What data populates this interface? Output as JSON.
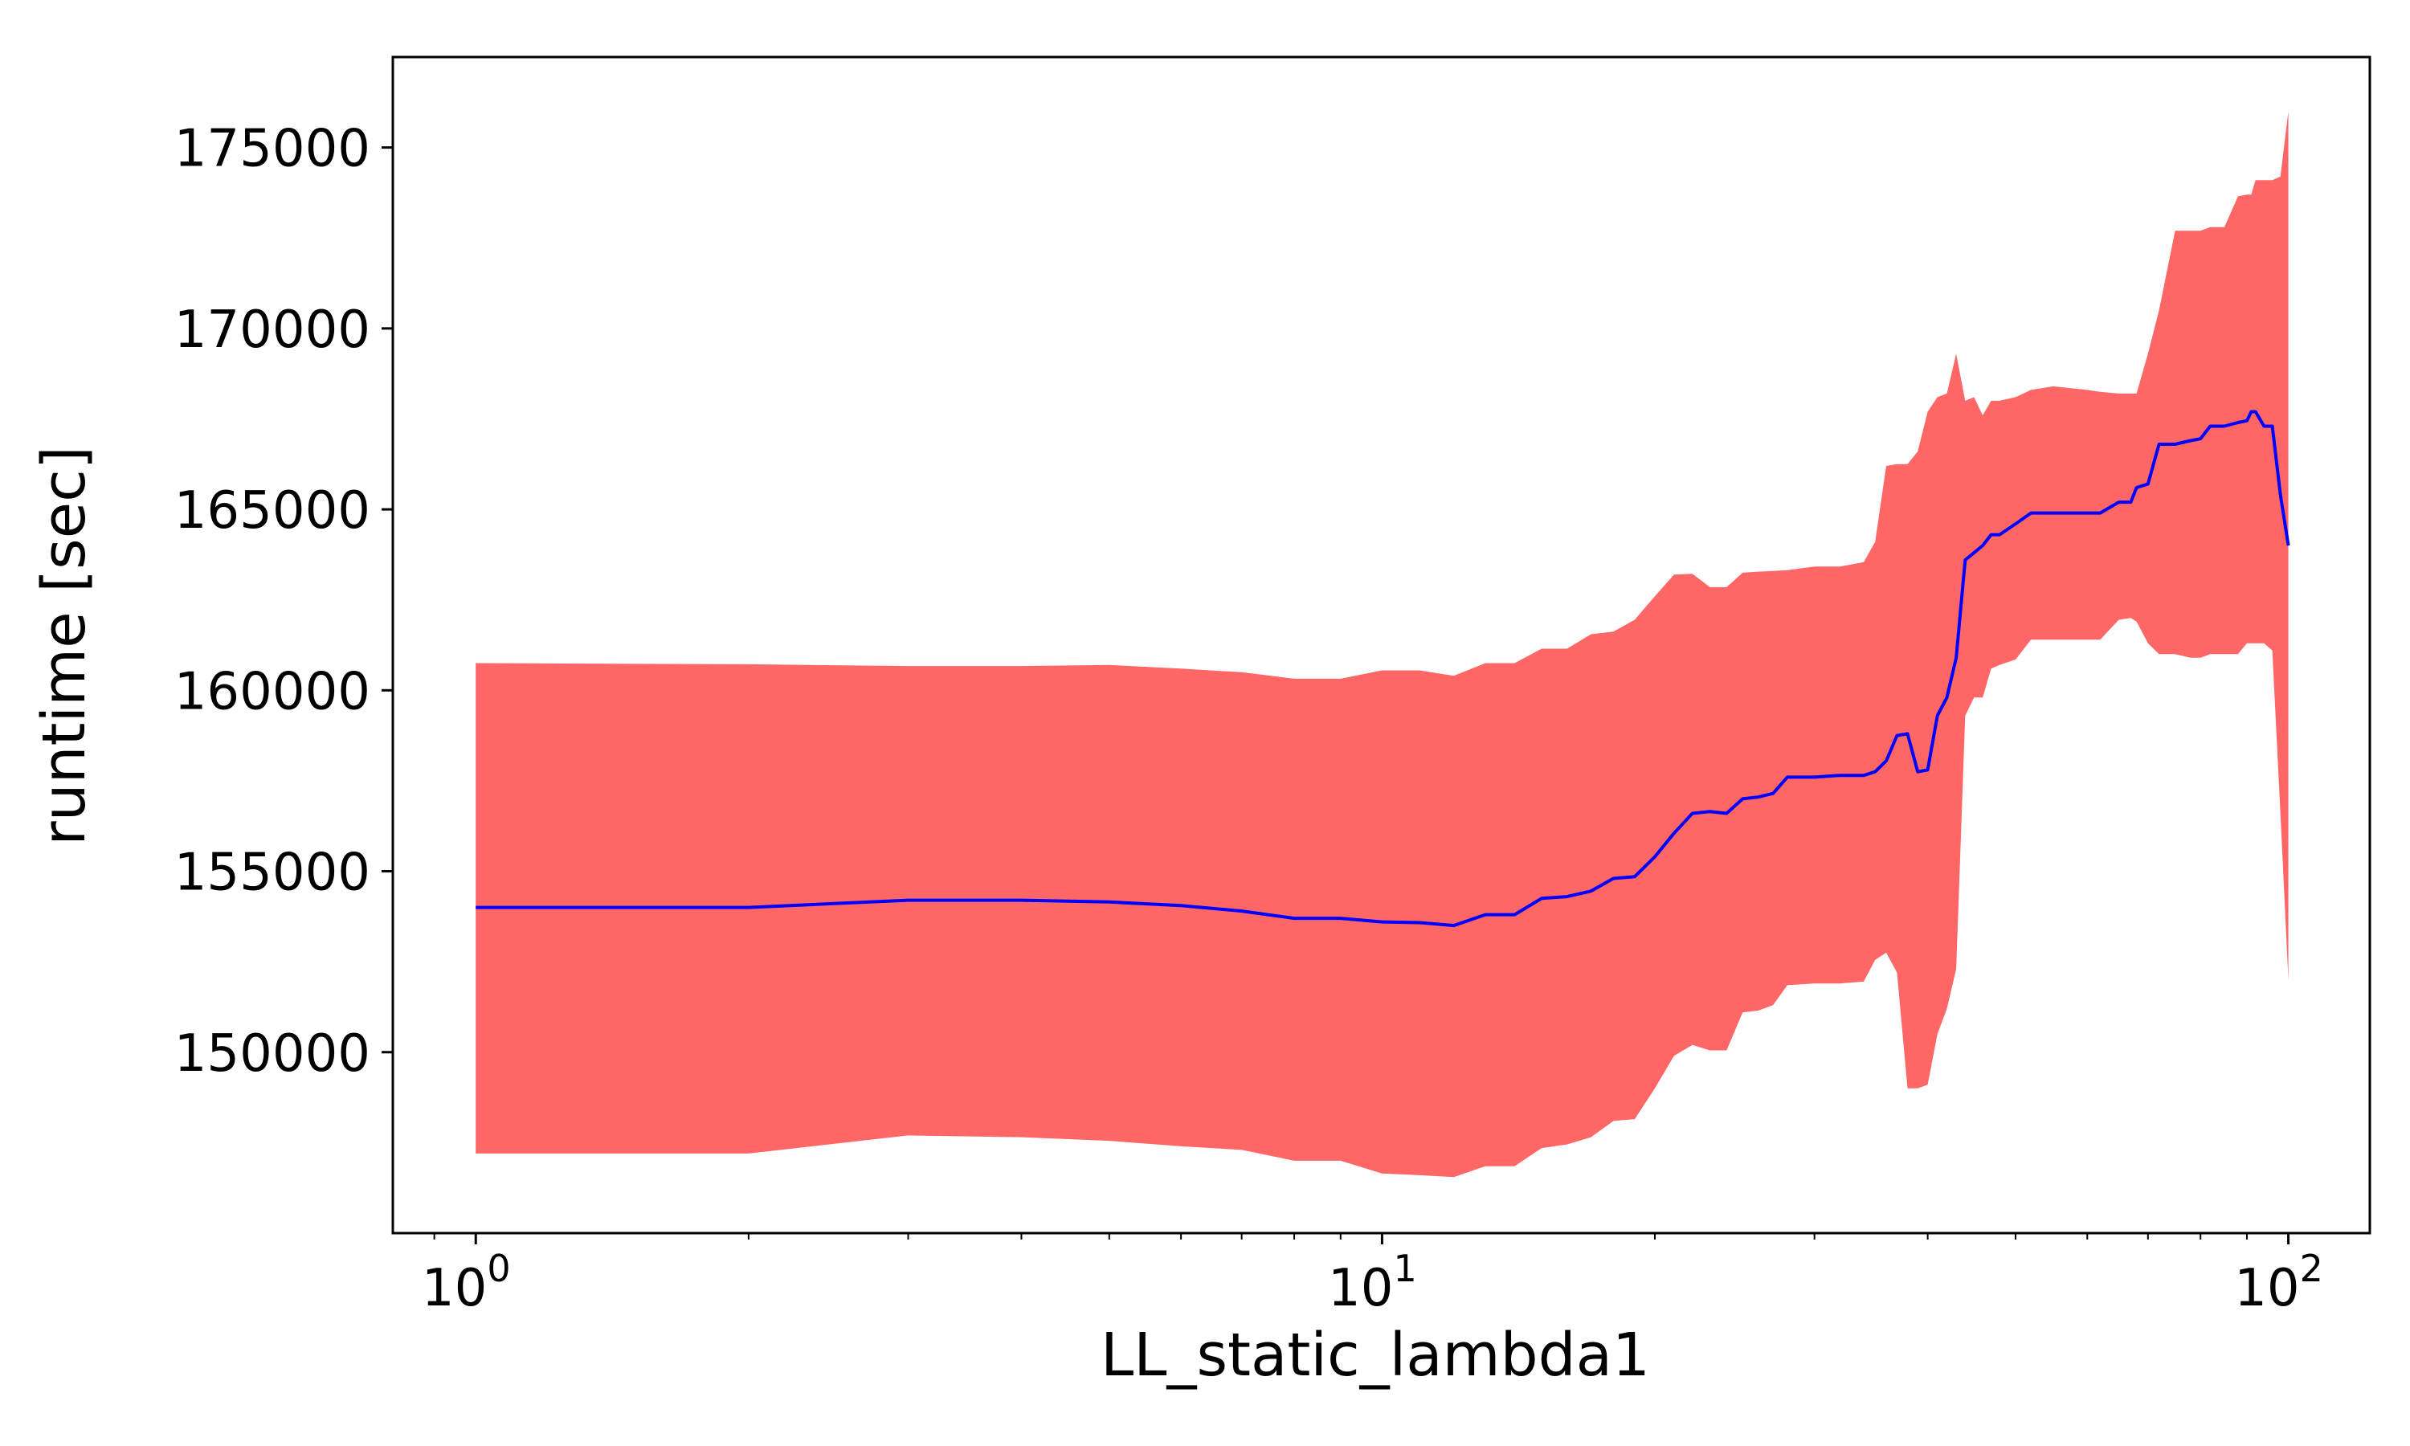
{
  "chart_data": {
    "type": "line",
    "title": "",
    "xlabel": "LL_static_lambda1",
    "ylabel": "runtime [sec]",
    "x_scale": "log",
    "xlim": [
      0.81,
      123
    ],
    "ylim": [
      145000,
      177500
    ],
    "x_ticks": [
      {
        "value": 1,
        "base": "10",
        "exp": "0"
      },
      {
        "value": 10,
        "base": "10",
        "exp": "1"
      },
      {
        "value": 100,
        "base": "10",
        "exp": "2"
      }
    ],
    "y_ticks": [
      150000,
      155000,
      160000,
      165000,
      170000,
      175000
    ],
    "grid": false,
    "legend": "none",
    "colors": {
      "line": "#0000ff",
      "band": "#ff6666"
    },
    "series": [
      {
        "x": [
          1,
          2,
          3,
          4,
          5,
          6,
          7,
          8,
          9,
          10,
          11,
          12,
          13,
          14,
          15,
          16,
          17,
          18,
          19,
          20,
          21,
          22,
          23,
          24,
          25,
          26,
          27,
          28,
          30,
          32,
          34,
          35,
          36,
          37,
          38,
          39,
          40,
          41,
          42,
          43,
          44,
          45,
          46,
          47,
          48,
          50,
          52,
          55,
          60,
          62,
          65,
          67,
          68,
          70,
          72,
          75,
          78,
          80,
          82,
          85,
          88,
          90,
          91,
          92,
          94,
          96,
          98,
          100
        ],
        "mean": [
          154000,
          154000,
          154200,
          154200,
          154150,
          154050,
          153900,
          153700,
          153700,
          153600,
          153580,
          153500,
          153800,
          153800,
          154250,
          154300,
          154450,
          154800,
          154850,
          155400,
          156050,
          156600,
          156650,
          156600,
          157000,
          157050,
          157150,
          157600,
          157600,
          157650,
          157650,
          157750,
          158050,
          158750,
          158800,
          157750,
          157800,
          159300,
          159800,
          160900,
          163600,
          163800,
          164000,
          164300,
          164300,
          164600,
          164900,
          164900,
          164900,
          164900,
          165200,
          165200,
          165600,
          165700,
          166800,
          166800,
          166900,
          166950,
          167300,
          167300,
          167400,
          167450,
          167700,
          167700,
          167300,
          167300,
          165400,
          164000
        ],
        "upper": [
          160750,
          160720,
          160670,
          160670,
          160700,
          160600,
          160500,
          160320,
          160320,
          160550,
          160550,
          160400,
          160750,
          160750,
          161150,
          161150,
          161550,
          161620,
          161950,
          162600,
          163200,
          163220,
          162850,
          162850,
          163250,
          163280,
          163300,
          163320,
          163420,
          163420,
          163540,
          164100,
          166200,
          166250,
          166250,
          166600,
          167700,
          168100,
          168200,
          169300,
          168000,
          168100,
          167600,
          168000,
          168000,
          168100,
          168300,
          168400,
          168300,
          168250,
          168200,
          168200,
          168200,
          169300,
          170500,
          172700,
          172700,
          172700,
          172800,
          172800,
          173650,
          173700,
          173700,
          174100,
          174100,
          174100,
          174200,
          176000
        ],
        "lower": [
          147200,
          147200,
          147700,
          147650,
          147550,
          147400,
          147300,
          147000,
          147000,
          146650,
          146600,
          146550,
          146850,
          146850,
          147350,
          147450,
          147650,
          148100,
          148150,
          149000,
          149900,
          150200,
          150050,
          150050,
          151100,
          151150,
          151300,
          151850,
          151900,
          151900,
          151950,
          152550,
          152750,
          152200,
          149000,
          149000,
          149100,
          150500,
          151200,
          152300,
          159300,
          159800,
          159800,
          160600,
          160700,
          160850,
          161400,
          161400,
          161400,
          161400,
          161950,
          162000,
          161900,
          161300,
          161000,
          161000,
          160900,
          160900,
          161000,
          161000,
          161000,
          161300,
          161300,
          161300,
          161300,
          161100,
          156600,
          152000
        ]
      }
    ]
  }
}
